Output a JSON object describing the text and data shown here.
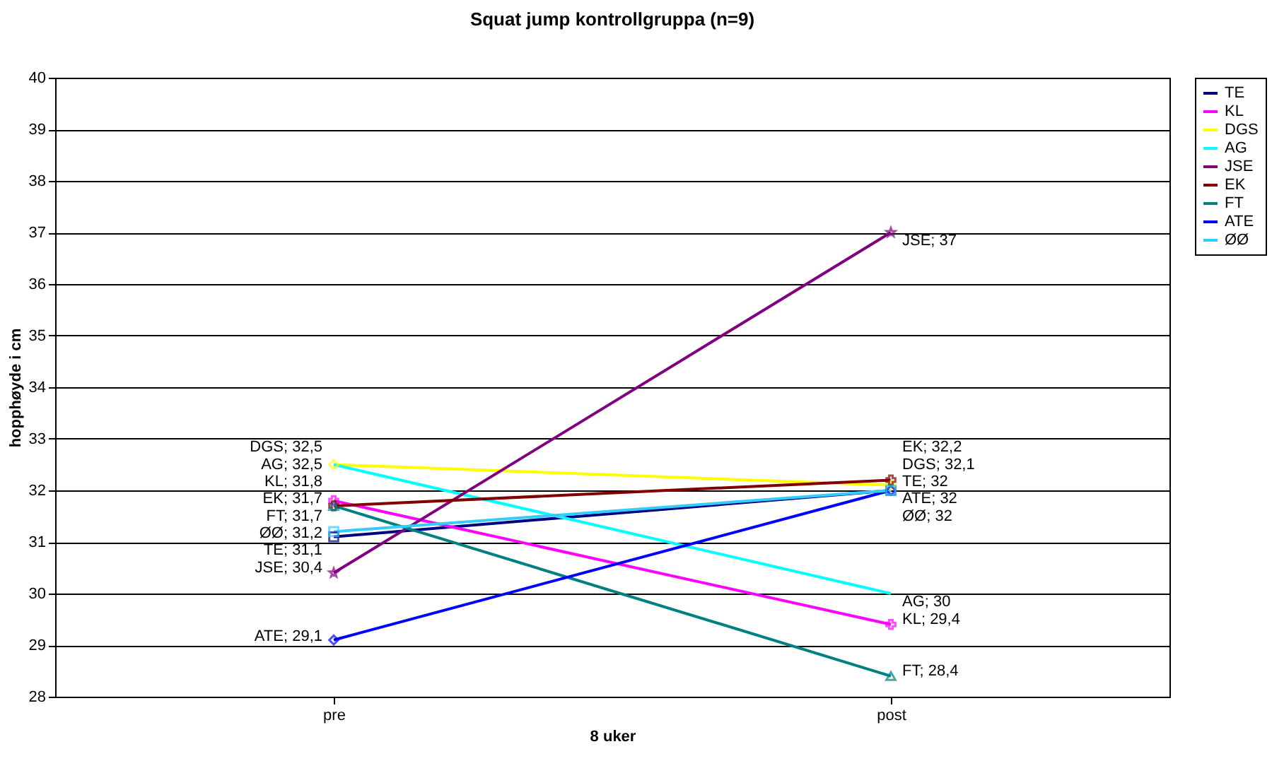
{
  "chart_data": {
    "type": "line",
    "title": "Squat jump kontrollgruppa (n=9)",
    "xlabel": "8 uker",
    "ylabel": "hopphøyde i cm",
    "categories": [
      "pre",
      "post"
    ],
    "ylim": [
      28,
      40
    ],
    "yticks": [
      28,
      29,
      30,
      31,
      32,
      33,
      34,
      35,
      36,
      37,
      38,
      39,
      40
    ],
    "grid": "y",
    "legend": "right",
    "series": [
      {
        "name": "TE",
        "color": "#000080",
        "marker": "square",
        "values": [
          31.1,
          32
        ],
        "value_labels": [
          "TE; 31,1",
          "TE; 32"
        ]
      },
      {
        "name": "KL",
        "color": "#ff00ff",
        "marker": "cross",
        "values": [
          31.8,
          29.4
        ],
        "value_labels": [
          "KL; 31,8",
          "KL; 29,4"
        ]
      },
      {
        "name": "DGS",
        "color": "#ffff00",
        "marker": "diamond",
        "values": [
          32.5,
          32.1
        ],
        "value_labels": [
          "DGS; 32,5",
          "DGS; 32,1"
        ]
      },
      {
        "name": "AG",
        "color": "#00ffff",
        "marker": "none",
        "values": [
          32.5,
          30
        ],
        "value_labels": [
          "AG; 32,5",
          "AG; 30"
        ]
      },
      {
        "name": "JSE",
        "color": "#800080",
        "marker": "star",
        "values": [
          30.4,
          37
        ],
        "value_labels": [
          "JSE; 30,4",
          "JSE; 37"
        ]
      },
      {
        "name": "EK",
        "color": "#800000",
        "marker": "cross",
        "values": [
          31.7,
          32.2
        ],
        "value_labels": [
          "EK; 31,7",
          "EK; 32,2"
        ]
      },
      {
        "name": "FT",
        "color": "#008080",
        "marker": "triangle",
        "values": [
          31.7,
          28.4
        ],
        "value_labels": [
          "FT; 31,7",
          "FT; 28,4"
        ]
      },
      {
        "name": "ATE",
        "color": "#0000ff",
        "marker": "diamond",
        "values": [
          29.1,
          32
        ],
        "value_labels": [
          "ATE; 29,1",
          "ATE; 32"
        ]
      },
      {
        "name": "ØØ",
        "color": "#33ccff",
        "marker": "square",
        "values": [
          31.2,
          32
        ],
        "value_labels": [
          "ØØ; 31,2",
          "ØØ; 32"
        ]
      }
    ]
  }
}
